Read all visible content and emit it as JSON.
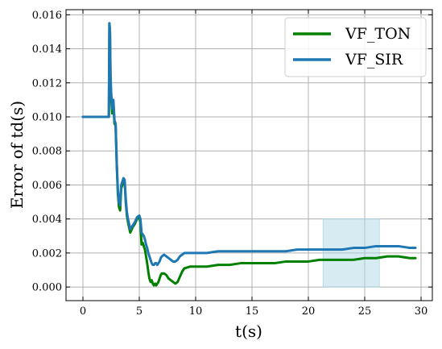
{
  "chart_data": {
    "type": "line",
    "title": "",
    "xlabel": "t(s)",
    "ylabel": "Error of td(s)",
    "xlim": [
      -1.5,
      31
    ],
    "ylim": [
      -0.0008,
      0.0163
    ],
    "xticks": [
      0,
      5,
      10,
      15,
      20,
      25,
      30
    ],
    "xtick_labels": [
      "0",
      "5",
      "10",
      "15",
      "20",
      "25",
      "30"
    ],
    "yticks": [
      0.0,
      0.002,
      0.004,
      0.006,
      0.008,
      0.01,
      0.012,
      0.014,
      0.016
    ],
    "ytick_labels": [
      "0.000",
      "0.002",
      "0.004",
      "0.006",
      "0.008",
      "0.010",
      "0.012",
      "0.014",
      "0.016"
    ],
    "grid": true,
    "legend_position": "top-right",
    "highlight_region": {
      "x": [
        21.3,
        26.3
      ],
      "y": [
        0.0,
        0.004
      ],
      "color": "#add8e6"
    },
    "series": [
      {
        "name": "VF_TON",
        "color": "#008000",
        "x": [
          0,
          2.3,
          2.35,
          2.4,
          2.45,
          2.5,
          2.6,
          2.7,
          2.8,
          2.9,
          3.0,
          3.1,
          3.2,
          3.3,
          3.4,
          3.5,
          3.6,
          3.7,
          3.8,
          3.9,
          4.0,
          4.2,
          4.4,
          4.6,
          4.8,
          5.0,
          5.1,
          5.2,
          5.3,
          5.4,
          5.5,
          5.6,
          5.7,
          5.8,
          5.9,
          6.0,
          6.1,
          6.2,
          6.3,
          6.4,
          6.5,
          6.6,
          6.7,
          6.8,
          6.9,
          7.0,
          7.2,
          7.4,
          7.6,
          7.8,
          8.0,
          8.2,
          8.4,
          8.6,
          8.8,
          9.0,
          9.5,
          10,
          11,
          12,
          13,
          14,
          15,
          16,
          17,
          18,
          19,
          20,
          21,
          22,
          23,
          24,
          25,
          26,
          27,
          28,
          29,
          29.5
        ],
        "values": [
          0.01,
          0.01,
          0.0155,
          0.015,
          0.012,
          0.0112,
          0.0102,
          0.0108,
          0.0096,
          0.0095,
          0.0072,
          0.0055,
          0.0047,
          0.0045,
          0.0058,
          0.006,
          0.0063,
          0.0062,
          0.005,
          0.0042,
          0.0038,
          0.0032,
          0.0035,
          0.0037,
          0.004,
          0.0041,
          0.0038,
          0.0025,
          0.0026,
          0.0024,
          0.0022,
          0.0018,
          0.0014,
          0.0009,
          0.0005,
          0.0003,
          0.0004,
          0.0002,
          0.0001,
          0.0002,
          0.0001,
          0.0002,
          0.0003,
          0.0005,
          0.0007,
          0.0008,
          0.0008,
          0.0007,
          0.0005,
          0.0004,
          0.0003,
          0.0002,
          0.0003,
          0.0006,
          0.0009,
          0.0011,
          0.0012,
          0.0012,
          0.0012,
          0.0013,
          0.0013,
          0.0014,
          0.0014,
          0.0014,
          0.0014,
          0.0015,
          0.0015,
          0.0015,
          0.0016,
          0.0016,
          0.0016,
          0.0016,
          0.0017,
          0.0017,
          0.0018,
          0.0018,
          0.0017,
          0.0017
        ]
      },
      {
        "name": "VF_SIR",
        "color": "#1f77b4",
        "x": [
          0,
          2.3,
          2.35,
          2.4,
          2.45,
          2.5,
          2.6,
          2.7,
          2.8,
          2.9,
          3.0,
          3.1,
          3.2,
          3.3,
          3.4,
          3.5,
          3.6,
          3.7,
          3.8,
          3.9,
          4.0,
          4.2,
          4.4,
          4.6,
          4.8,
          5.0,
          5.1,
          5.2,
          5.3,
          5.4,
          5.5,
          5.6,
          5.7,
          5.8,
          5.9,
          6.0,
          6.1,
          6.2,
          6.3,
          6.4,
          6.5,
          6.6,
          6.7,
          6.8,
          6.9,
          7.0,
          7.2,
          7.4,
          7.6,
          7.8,
          8.0,
          8.2,
          8.4,
          8.6,
          8.8,
          9.0,
          9.5,
          10,
          11,
          12,
          13,
          14,
          15,
          16,
          17,
          18,
          19,
          20,
          21,
          22,
          23,
          24,
          25,
          26,
          27,
          28,
          29,
          29.5
        ],
        "values": [
          0.01,
          0.01,
          0.0155,
          0.015,
          0.0125,
          0.0115,
          0.0105,
          0.011,
          0.0098,
          0.0096,
          0.0073,
          0.0057,
          0.005,
          0.0048,
          0.006,
          0.0062,
          0.0064,
          0.0063,
          0.0052,
          0.0044,
          0.004,
          0.0034,
          0.0036,
          0.0038,
          0.0041,
          0.0042,
          0.004,
          0.0032,
          0.0031,
          0.003,
          0.0028,
          0.0025,
          0.0023,
          0.002,
          0.0018,
          0.0016,
          0.0014,
          0.0013,
          0.0013,
          0.0014,
          0.0014,
          0.0013,
          0.0014,
          0.0015,
          0.0017,
          0.0018,
          0.0019,
          0.0018,
          0.0017,
          0.0016,
          0.0015,
          0.0015,
          0.0016,
          0.0018,
          0.0019,
          0.002,
          0.002,
          0.002,
          0.002,
          0.0021,
          0.0021,
          0.0021,
          0.0021,
          0.0021,
          0.0021,
          0.0021,
          0.0022,
          0.0022,
          0.0022,
          0.0022,
          0.0022,
          0.0023,
          0.0023,
          0.0024,
          0.0024,
          0.0024,
          0.0023,
          0.0023
        ]
      }
    ]
  }
}
